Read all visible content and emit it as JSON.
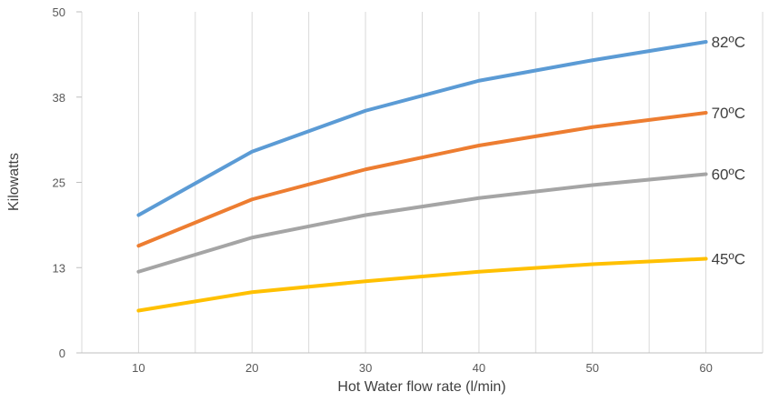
{
  "chart_data": {
    "type": "line",
    "title": "",
    "xlabel": "Hot Water flow rate (l/min)",
    "ylabel": "Kilowatts",
    "x": [
      10,
      20,
      30,
      40,
      50,
      60
    ],
    "x_ticks": [
      "10",
      "20",
      "30",
      "40",
      "50",
      "60"
    ],
    "xlim": [
      5,
      65
    ],
    "ylim": [
      0,
      50
    ],
    "y_ticks": [
      "0",
      "13",
      "25",
      "38",
      "50"
    ],
    "y_tick_values": [
      0,
      12.5,
      25,
      37.5,
      50
    ],
    "grid": "vertical",
    "legend": "inline labels at right end of lines",
    "series": [
      {
        "name": "82ºC",
        "color": "#5B9BD5",
        "values": [
          20.2,
          29.5,
          35.5,
          39.9,
          42.9,
          45.6
        ]
      },
      {
        "name": "70ºC",
        "color": "#ED7D31",
        "values": [
          15.7,
          22.5,
          26.9,
          30.4,
          33.1,
          35.2
        ]
      },
      {
        "name": "60ºC",
        "color": "#A5A5A5",
        "values": [
          11.9,
          16.9,
          20.2,
          22.7,
          24.6,
          26.2
        ]
      },
      {
        "name": "45ºC",
        "color": "#FFC000",
        "values": [
          6.2,
          8.9,
          10.5,
          11.9,
          13.0,
          13.8
        ]
      }
    ]
  }
}
